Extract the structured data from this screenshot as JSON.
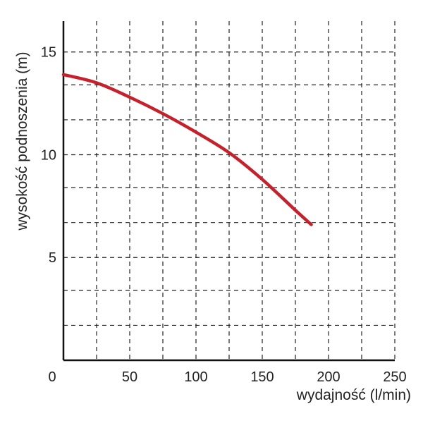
{
  "chart_data": {
    "type": "line",
    "xlabel": "wydajność (l/min)",
    "ylabel": "wysokość podnoszenia (m)",
    "xlim": [
      0,
      250
    ],
    "ylim": [
      0,
      16.5
    ],
    "x_ticks": [
      0,
      50,
      100,
      150,
      200,
      250
    ],
    "x_tick_labels": [
      "0",
      "50",
      "100",
      "150",
      "200",
      "250"
    ],
    "y_ticks": [
      5,
      10,
      15
    ],
    "y_tick_labels": [
      "5",
      "10",
      "15"
    ],
    "grid": true,
    "x_grid_step": 25,
    "y_grid_values": [
      1.7,
      3.4,
      5,
      6.7,
      8.4,
      10,
      11.7,
      13.4,
      15
    ],
    "colors": {
      "curve": "#c8202a",
      "axis": "#111111",
      "grid": "#222222"
    },
    "series": [
      {
        "x": [
          0,
          25,
          50,
          75,
          100,
          125,
          150,
          175,
          187
        ],
        "y": [
          13.9,
          13.5,
          12.8,
          12.0,
          11.1,
          10.1,
          8.8,
          7.3,
          6.6
        ]
      }
    ]
  }
}
